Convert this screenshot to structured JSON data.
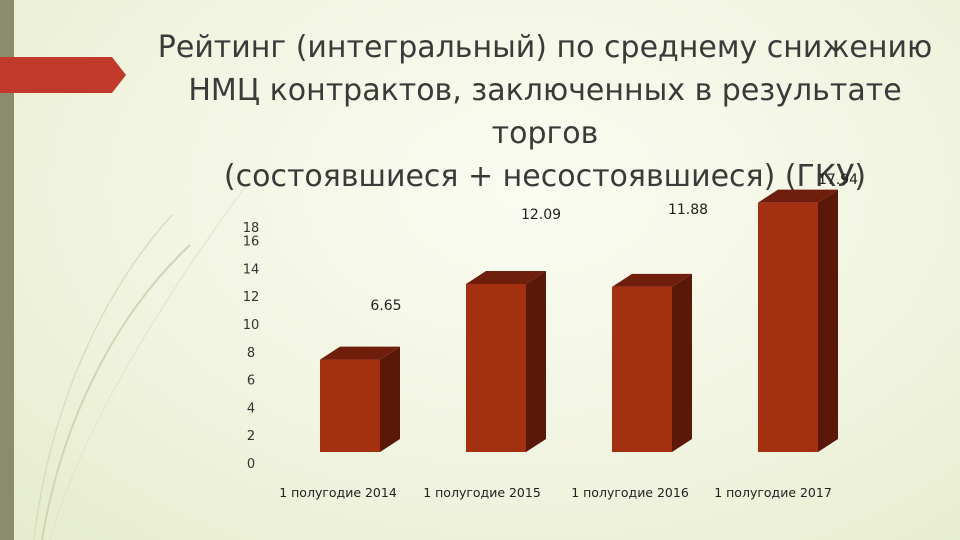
{
  "title_lines": [
    "Рейтинг (интегральный) по среднему снижению",
    "НМЦ контрактов, заключенных в результате торгов",
    "(состоявшиеся + несостоявшиеся) (ГКУ)"
  ],
  "colors": {
    "bar_front": "#a43012",
    "bar_side": "#5a1808",
    "bar_top": "#6e1e0b",
    "accent": "#c0392b",
    "strip": "#8c8b6c"
  },
  "chart_data": {
    "type": "bar",
    "categories": [
      "1 полугодие 2014",
      "1 полугодие 2015",
      "1 полугодие 2016",
      "1 полугодие 2017"
    ],
    "values": [
      6.65,
      12.09,
      11.88,
      17.94
    ],
    "data_labels": [
      "6.65",
      "12.09",
      "11.88",
      "17.94"
    ],
    "y_ticks": [
      "0",
      "2",
      "4",
      "6",
      "8",
      "10",
      "12",
      "14",
      "16",
      "18"
    ],
    "ylim": [
      0,
      18
    ],
    "grid": false,
    "legend": "none",
    "style": "3d-column"
  }
}
